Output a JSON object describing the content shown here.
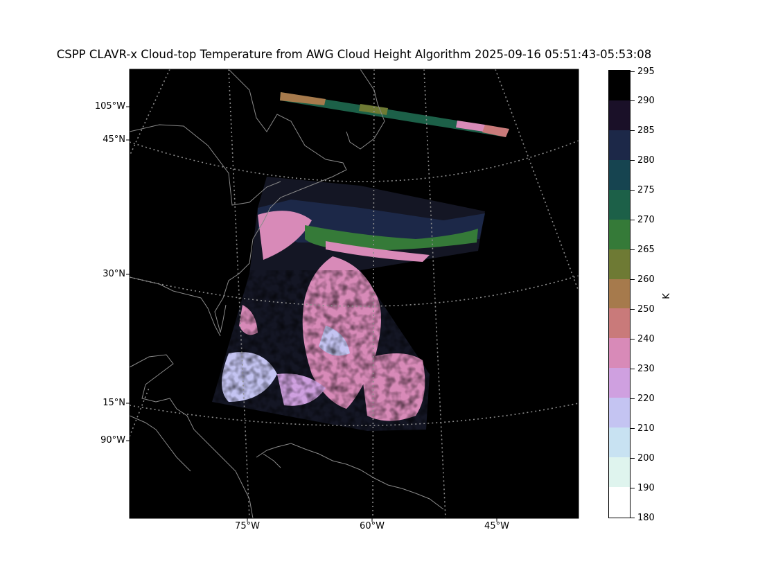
{
  "figure": {
    "title": "CSPP CLAVR-x Cloud-top Temperature from AWG Cloud Height Algorithm 2025-09-16 05:51:43-05:53:08"
  },
  "map": {
    "lat_labels": [
      "105°W",
      "45°N",
      "30°N",
      "15°N",
      "90°W"
    ],
    "lon_labels": [
      "75°W",
      "60°W",
      "45°W"
    ],
    "gridlines": "dotted",
    "background": "#000000"
  },
  "colorbar": {
    "unit": "K",
    "ticks": [
      "295",
      "290",
      "285",
      "280",
      "275",
      "270",
      "265",
      "260",
      "250",
      "240",
      "230",
      "220",
      "210",
      "200",
      "190",
      "180"
    ],
    "colors_top_to_bottom": [
      "#000000",
      "#1a1028",
      "#1c2848",
      "#164450",
      "#1c6048",
      "#357a38",
      "#6e7a34",
      "#a67a4c",
      "#c97a7a",
      "#d88ab8",
      "#cfa0e0",
      "#c4c4f2",
      "#c8e2f2",
      "#dff4ee",
      "#ffffff"
    ]
  },
  "chart_data": {
    "type": "heatmap",
    "title": "CSPP CLAVR-x Cloud-top Temperature from AWG Cloud Height Algorithm 2025-09-16 05:51:43-05:53:08",
    "colorbar_label": "K",
    "colorbar_bounds": [
      180,
      190,
      200,
      210,
      220,
      230,
      240,
      250,
      260,
      265,
      270,
      275,
      280,
      285,
      290,
      295
    ],
    "lon_ticks": [
      "75°W",
      "60°W",
      "45°W"
    ],
    "lat_ticks": [
      "45°N",
      "30°N",
      "15°N"
    ],
    "grid": true
  }
}
